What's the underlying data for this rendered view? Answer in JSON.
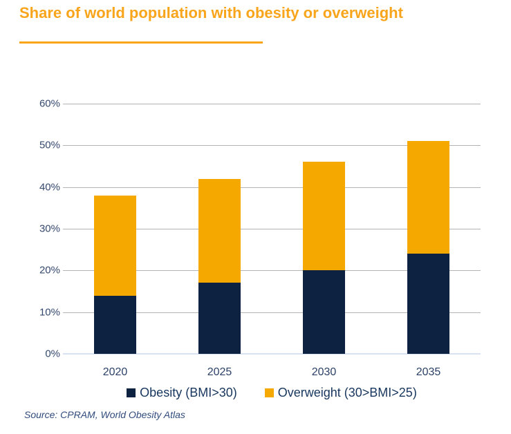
{
  "title": "Share of world population with obesity or overweight",
  "source": "Source: CPRAM, World Obesity Atlas",
  "colors": {
    "title_orange": "#F9A51C",
    "bar_orange": "#F5A800",
    "bar_navy": "#0D2240",
    "gridline": "#B3B3B3",
    "baseline": "#D7E1F1"
  },
  "chart_data": {
    "type": "bar",
    "stacked": true,
    "title": "Share of world population with obesity or overweight",
    "categories": [
      "2020",
      "2025",
      "2030",
      "2035"
    ],
    "series": [
      {
        "key": "obesity",
        "name": "Obesity (BMI>30)",
        "color": "#0D2240",
        "values": [
          14,
          17,
          20,
          24
        ]
      },
      {
        "key": "overweight",
        "name": "Overweight (30>BMI>25)",
        "color": "#F5A800",
        "values": [
          24,
          25,
          26,
          27
        ]
      }
    ],
    "stack_totals": [
      38,
      42,
      46,
      51
    ],
    "xlabel": "",
    "ylabel": "",
    "ylim": [
      0,
      60
    ],
    "yticks": [
      {
        "value": 0,
        "label": "0%"
      },
      {
        "value": 10,
        "label": "10%"
      },
      {
        "value": 20,
        "label": "20%"
      },
      {
        "value": 30,
        "label": "30%"
      },
      {
        "value": 40,
        "label": "40%"
      },
      {
        "value": 50,
        "label": "50%"
      },
      {
        "value": 60,
        "label": "60%"
      }
    ],
    "grid": true,
    "legend_position": "bottom"
  }
}
